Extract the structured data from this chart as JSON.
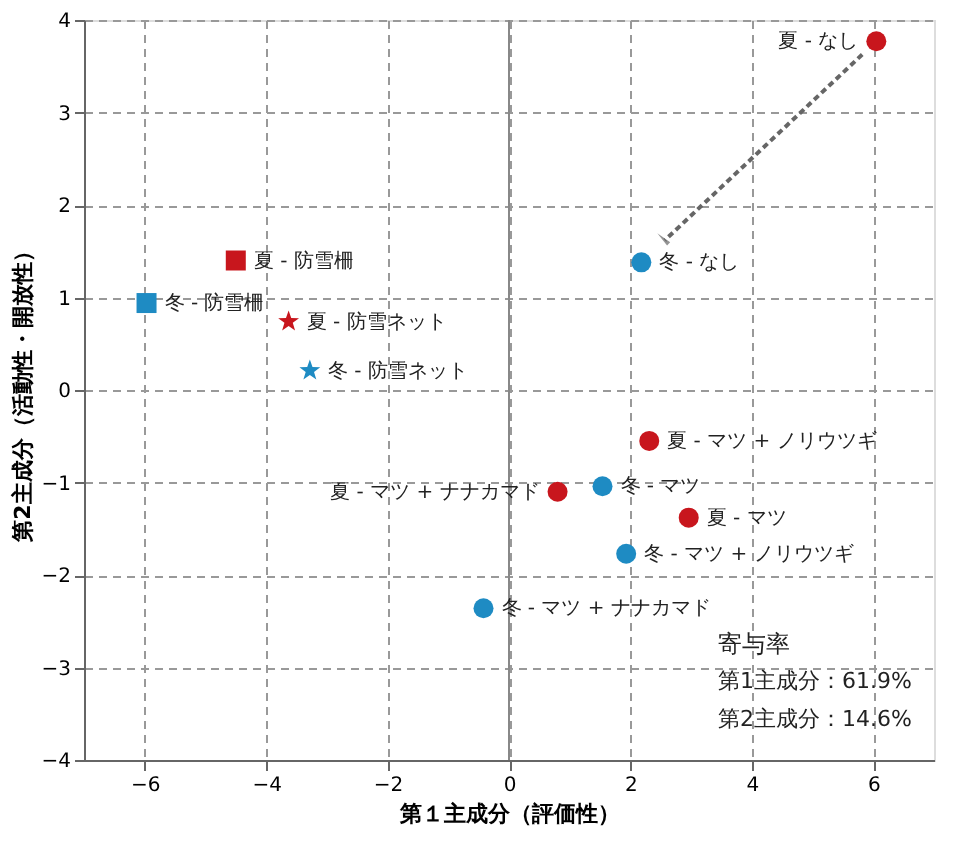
{
  "chart_data": {
    "type": "scatter",
    "xlabel": "第１主成分（評価性）",
    "ylabel": "第2主成分（活動性・開放性）",
    "xlim": [
      -7,
      7
    ],
    "xticks": [
      -6,
      -4,
      -2,
      0,
      2,
      4,
      6
    ],
    "ylim": [
      -4,
      4
    ],
    "yticks": [
      -4,
      -3,
      -2,
      -1,
      0,
      1,
      2,
      3,
      4
    ],
    "grid": true,
    "ref_lines": [
      {
        "axis": "x",
        "value": 0,
        "color": "#888888",
        "line_style": "solid"
      }
    ],
    "series": [
      {
        "marker": "circle",
        "x": [
          6.05,
          2.18
        ],
        "values": [
          3.77,
          1.38
        ],
        "colors": [
          "#c8161d",
          "#1e8bc3"
        ]
      },
      {
        "marker": "square",
        "x": [
          -4.5,
          -5.97
        ],
        "values": [
          1.4,
          0.94
        ],
        "colors": [
          "#c8161d",
          "#1e8bc3"
        ]
      },
      {
        "marker": "star",
        "x": [
          -3.63,
          -3.28
        ],
        "values": [
          0.74,
          0.21
        ],
        "colors": [
          "#c8161d",
          "#1e8bc3"
        ]
      },
      {
        "marker": "circle",
        "x": [
          2.31,
          0.8,
          1.54,
          2.96,
          1.93,
          -0.42
        ],
        "values": [
          -0.55,
          -1.1,
          -1.04,
          -1.38,
          -1.77,
          -2.36
        ],
        "colors": [
          "#c8161d",
          "#c8161d",
          "#1e8bc3",
          "#c8161d",
          "#1e8bc3",
          "#1e8bc3"
        ]
      }
    ],
    "annotations": [
      {
        "text": "夏 - なし",
        "x": 6.05,
        "y": 3.77
      },
      {
        "text": "冬 - なし",
        "x": 2.18,
        "y": 1.38
      },
      {
        "text": "夏 - 防雪柵",
        "x": -4.5,
        "y": 1.4
      },
      {
        "text": "冬 - 防雪柵",
        "x": -5.97,
        "y": 0.94
      },
      {
        "text": "夏 - 防雪ネット",
        "x": -3.63,
        "y": 0.74
      },
      {
        "text": "冬 - 防雪ネット",
        "x": -3.28,
        "y": 0.21
      },
      {
        "text": "夏 - マツ + ノリウツギ",
        "x": 2.31,
        "y": -0.55
      },
      {
        "text": "夏 - マツ + ナナカマド",
        "x": 0.8,
        "y": -1.1
      },
      {
        "text": "冬 - マツ",
        "x": 1.54,
        "y": -1.04
      },
      {
        "text": "夏 - マツ",
        "x": 2.96,
        "y": -1.38
      },
      {
        "text": "冬 - マツ + ノリウツギ",
        "x": 1.93,
        "y": -1.77
      },
      {
        "text": "冬 - マツ + ナナカマド",
        "x": -0.42,
        "y": -2.36
      },
      "寄与率",
      "第1主成分：61.9%",
      "第2主成分：14.6%"
    ]
  }
}
